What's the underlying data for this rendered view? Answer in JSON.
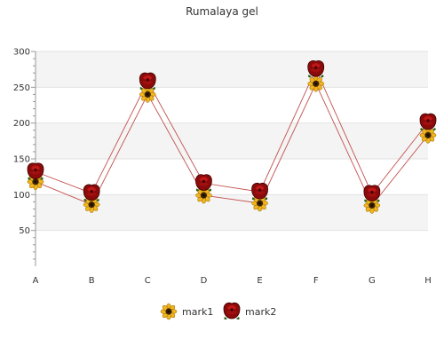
{
  "chart_data": {
    "type": "line",
    "title": "Rumalaya gel",
    "categories": [
      "A",
      "B",
      "C",
      "D",
      "E",
      "F",
      "G",
      "H"
    ],
    "ylim": [
      0,
      300
    ],
    "yticks": [
      50,
      100,
      150,
      200,
      250,
      300
    ],
    "grid": true,
    "legend": "bottom-center",
    "series": [
      {
        "name": "mark1",
        "values": [
          118,
          86,
          240,
          99,
          88,
          255,
          85,
          183
        ],
        "color": "#c0504d",
        "marker": "sunflower-icon"
      },
      {
        "name": "mark2",
        "values": [
          132,
          102,
          258,
          116,
          104,
          275,
          101,
          201
        ],
        "color": "#c0504d",
        "marker": "rose-icon"
      }
    ]
  }
}
